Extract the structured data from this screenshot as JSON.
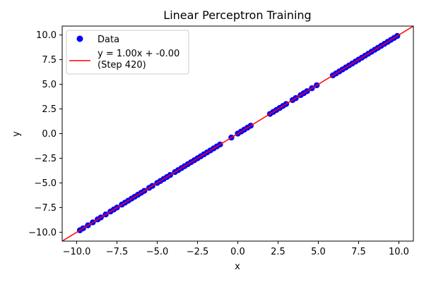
{
  "chart_data": {
    "type": "scatter",
    "title": "Linear Perceptron Training",
    "xlabel": "x",
    "ylabel": "y",
    "xlim": [
      -10.9,
      10.9
    ],
    "ylim": [
      -10.9,
      10.9
    ],
    "x_ticks": [
      -10.0,
      -7.5,
      -5.0,
      -2.5,
      0.0,
      2.5,
      5.0,
      7.5,
      10.0
    ],
    "y_ticks": [
      -10.0,
      -7.5,
      -5.0,
      -2.5,
      0.0,
      2.5,
      5.0,
      7.5,
      10.0
    ],
    "x_tick_labels": [
      "−10.0",
      "−7.5",
      "−5.0",
      "−2.5",
      "0.0",
      "2.5",
      "5.0",
      "7.5",
      "10.0"
    ],
    "y_tick_labels": [
      "−10.0",
      "−7.5",
      "−5.0",
      "−2.5",
      "0.0",
      "2.5",
      "5.0",
      "7.5",
      "10.0"
    ],
    "grid": false,
    "legend_position": "top-left",
    "series": [
      {
        "name": "Data",
        "kind": "scatter",
        "color": "#0000ff",
        "x": [
          -9.8,
          -9.6,
          -9.3,
          -9.0,
          -8.7,
          -8.5,
          -8.2,
          -7.9,
          -7.7,
          -7.5,
          -7.2,
          -7.0,
          -6.8,
          -6.6,
          -6.4,
          -6.2,
          -6.0,
          -5.8,
          -5.5,
          -5.3,
          -5.0,
          -4.8,
          -4.6,
          -4.4,
          -4.2,
          -3.9,
          -3.7,
          -3.5,
          -3.3,
          -3.1,
          -2.9,
          -2.7,
          -2.5,
          -2.3,
          -2.1,
          -1.9,
          -1.7,
          -1.5,
          -1.3,
          -1.1,
          -0.4,
          0.0,
          0.2,
          0.4,
          0.6,
          0.8,
          2.0,
          2.2,
          2.4,
          2.6,
          2.8,
          3.0,
          3.4,
          3.6,
          3.9,
          4.1,
          4.3,
          4.6,
          4.9,
          5.9,
          6.1,
          6.3,
          6.5,
          6.7,
          6.9,
          7.1,
          7.3,
          7.5,
          7.7,
          7.9,
          8.1,
          8.3,
          8.5,
          8.7,
          8.9,
          9.1,
          9.3,
          9.5,
          9.7,
          9.9
        ],
        "y": [
          -9.8,
          -9.6,
          -9.3,
          -9.0,
          -8.7,
          -8.5,
          -8.2,
          -7.9,
          -7.7,
          -7.5,
          -7.2,
          -7.0,
          -6.8,
          -6.6,
          -6.4,
          -6.2,
          -6.0,
          -5.8,
          -5.5,
          -5.3,
          -5.0,
          -4.8,
          -4.6,
          -4.4,
          -4.2,
          -3.9,
          -3.7,
          -3.5,
          -3.3,
          -3.1,
          -2.9,
          -2.7,
          -2.5,
          -2.3,
          -2.1,
          -1.9,
          -1.7,
          -1.5,
          -1.3,
          -1.1,
          -0.4,
          0.0,
          0.2,
          0.4,
          0.6,
          0.8,
          2.0,
          2.2,
          2.4,
          2.6,
          2.8,
          3.0,
          3.4,
          3.6,
          3.9,
          4.1,
          4.3,
          4.6,
          4.9,
          5.9,
          6.1,
          6.3,
          6.5,
          6.7,
          6.9,
          7.1,
          7.3,
          7.5,
          7.7,
          7.9,
          8.1,
          8.3,
          8.5,
          8.7,
          8.9,
          9.1,
          9.3,
          9.5,
          9.7,
          9.9
        ]
      },
      {
        "name": "y = 1.00x + -0.00",
        "name_line2": "(Step 420)",
        "kind": "line",
        "color": "#ff0000",
        "slope": 1.0,
        "intercept": 0.0
      }
    ]
  }
}
